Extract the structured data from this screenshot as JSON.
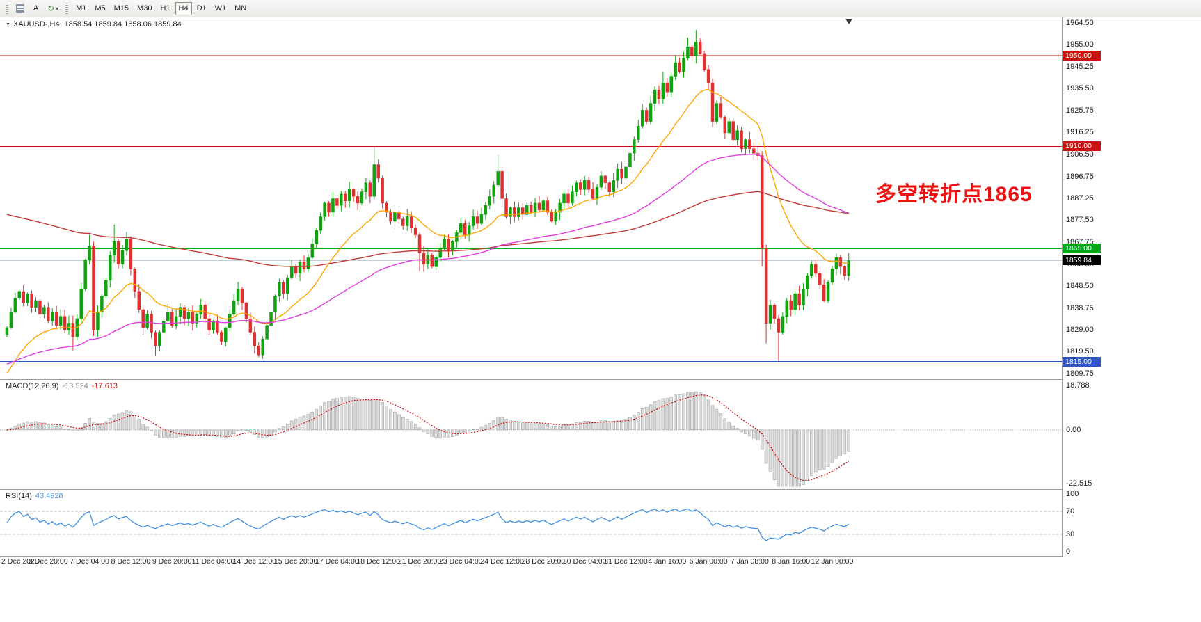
{
  "toolbar": {
    "text_tool_label": "A",
    "icons": {
      "cycle": "↻",
      "dropdown": "▾",
      "symbol_dropdown": "▼"
    },
    "timeframes": [
      {
        "label": "M1"
      },
      {
        "label": "M5"
      },
      {
        "label": "M15"
      },
      {
        "label": "M30"
      },
      {
        "label": "H1"
      },
      {
        "label": "H4",
        "active": true
      },
      {
        "label": "D1"
      },
      {
        "label": "W1"
      },
      {
        "label": "MN"
      }
    ]
  },
  "chart_header": {
    "symbol": "XAUUSD-,H4",
    "ohlc": "1858.54 1859.84 1858.06 1859.84"
  },
  "annotation": {
    "text": "多空转折点1865",
    "color": "#EE1111"
  },
  "price_scale": {
    "ticks": [
      "1964.50",
      "1955.00",
      "1945.25",
      "1935.50",
      "1925.75",
      "1916.25",
      "1906.50",
      "1896.75",
      "1887.25",
      "1877.50",
      "1867.75",
      "1858.00",
      "1848.50",
      "1838.75",
      "1829.00",
      "1819.50",
      "1809.75"
    ]
  },
  "chart_data": {
    "type": "candlestick",
    "symbol": "XAUUSD-",
    "timeframe": "H4",
    "ohlc_display": {
      "open": "1858.54",
      "high": "1859.84",
      "low": "1858.06",
      "close": "1859.84"
    },
    "y_axis": {
      "min": 1809.75,
      "max": 1964.5
    },
    "colors": {
      "up": "#0FA30F",
      "down": "#E03030",
      "bg": "#FFFFFF"
    },
    "open_first": 1827,
    "closes": [
      1830,
      1837,
      1843,
      1846,
      1841,
      1845,
      1839,
      1842,
      1836,
      1839,
      1833,
      1837,
      1831,
      1835,
      1829,
      1832,
      1826,
      1834,
      1847,
      1860,
      1866,
      1829,
      1837,
      1844,
      1851,
      1862,
      1868,
      1858,
      1864,
      1869,
      1856,
      1846,
      1838,
      1830,
      1836,
      1828,
      1822,
      1828,
      1833,
      1837,
      1831,
      1835,
      1839,
      1834,
      1837,
      1832,
      1836,
      1840,
      1834,
      1829,
      1833,
      1828,
      1824,
      1830,
      1836,
      1842,
      1847,
      1841,
      1834,
      1828,
      1822,
      1818,
      1825,
      1831,
      1837,
      1844,
      1850,
      1845,
      1852,
      1857,
      1854,
      1859,
      1856,
      1861,
      1867,
      1873,
      1879,
      1885,
      1881,
      1887,
      1884,
      1889,
      1886,
      1891,
      1888,
      1885,
      1890,
      1894,
      1888,
      1902,
      1896,
      1885,
      1881,
      1877,
      1881,
      1878,
      1875,
      1879,
      1874,
      1871,
      1863,
      1858,
      1862,
      1857,
      1861,
      1865,
      1869,
      1864,
      1868,
      1872,
      1876,
      1871,
      1875,
      1879,
      1876,
      1880,
      1884,
      1888,
      1893,
      1899,
      1887,
      1879,
      1883,
      1879,
      1883,
      1880,
      1884,
      1881,
      1885,
      1882,
      1886,
      1881,
      1877,
      1881,
      1885,
      1889,
      1885,
      1890,
      1894,
      1891,
      1895,
      1891,
      1887,
      1892,
      1897,
      1894,
      1890,
      1895,
      1900,
      1896,
      1901,
      1907,
      1913,
      1919,
      1926,
      1921,
      1929,
      1935,
      1931,
      1938,
      1934,
      1941,
      1947,
      1943,
      1949,
      1954,
      1950,
      1956,
      1951,
      1944,
      1938,
      1921,
      1929,
      1923,
      1916,
      1921,
      1913,
      1917,
      1909,
      1913,
      1909,
      1907,
      1906,
      1865,
      1832,
      1840,
      1834,
      1828,
      1835,
      1842,
      1838,
      1845,
      1840,
      1847,
      1853,
      1858,
      1854,
      1849,
      1842,
      1850,
      1856,
      1861,
      1857,
      1853,
      1859.84
    ],
    "high_overrides": {
      "20": 1871,
      "26": 1875.5,
      "89": 1909.5,
      "119": 1906,
      "159": 1943,
      "165": 1958,
      "167": 1961.5
    },
    "low_overrides": {
      "16": 1820,
      "36": 1817.5,
      "61": 1817,
      "100": 1855,
      "183": 1857,
      "184": 1823,
      "187": 1815.3
    },
    "h_lines": [
      {
        "price": 1950.0,
        "label": "1950.00",
        "color": "#CC1111",
        "label_bg": "#CC1111",
        "width": 1
      },
      {
        "price": 1910.0,
        "label": "1910.00",
        "color": "#CC1111",
        "label_bg": "#CC1111",
        "width": 1
      },
      {
        "price": 1865.0,
        "label": "1865.00",
        "color": "#00B21B",
        "label_bg": "#00A818",
        "width": 2
      },
      {
        "price": 1815.0,
        "label": "1815.00",
        "color": "#2F55C9",
        "label_bg": "#2F55C9",
        "width": 2
      }
    ],
    "bid": {
      "price": 1859.84,
      "label": "1859.84",
      "line_color": "#8FA0B0",
      "label_bg": "#000000"
    },
    "mas": [
      {
        "name": "ma-fast",
        "period": 20,
        "seed": 1810,
        "color": "#FFA500"
      },
      {
        "name": "ma-mid",
        "period": 75,
        "seed": 1814,
        "color": "#E03FE0"
      },
      {
        "name": "ma-slow",
        "period": 170,
        "seed": 1880,
        "color": "#C23B3B"
      }
    ],
    "indicators": [
      {
        "id": "macd",
        "label": "MACD(12,26,9)",
        "value_main": "-13.524",
        "value_signal": "-17.613",
        "fast": 12,
        "slow": 26,
        "signal": 9,
        "scale_max": 18.788,
        "scale_min": -22.515,
        "axis_labels": [
          "18.788",
          "0.00",
          "-22.515"
        ],
        "bar_fill": "#DCDCDC",
        "bar_stroke": "#A3A3A3",
        "signal_color": "#D40000"
      },
      {
        "id": "rsi",
        "label": "RSI(14)",
        "value": "43.4928",
        "period": 14,
        "levels": [
          70,
          30
        ],
        "axis_labels": [
          "100",
          "70",
          "30",
          "0"
        ],
        "line_color": "#3E8FE0",
        "level_color": "#C4C4C4"
      }
    ],
    "x_labels": [
      {
        "i": 0,
        "t": "2 Dec 2020"
      },
      {
        "i": 10,
        "t": "3 Dec 20:00"
      },
      {
        "i": 20,
        "t": "7 Dec 04:00"
      },
      {
        "i": 30,
        "t": "8 Dec 12:00"
      },
      {
        "i": 40,
        "t": "9 Dec 20:00"
      },
      {
        "i": 50,
        "t": "11 Dec 04:00"
      },
      {
        "i": 60,
        "t": "14 Dec 12:00"
      },
      {
        "i": 70,
        "t": "15 Dec 20:00"
      },
      {
        "i": 80,
        "t": "17 Dec 04:00"
      },
      {
        "i": 90,
        "t": "18 Dec 12:00"
      },
      {
        "i": 100,
        "t": "21 Dec 20:00"
      },
      {
        "i": 110,
        "t": "23 Dec 04:00"
      },
      {
        "i": 120,
        "t": "24 Dec 12:00"
      },
      {
        "i": 130,
        "t": "28 Dec 20:00"
      },
      {
        "i": 140,
        "t": "30 Dec 04:00"
      },
      {
        "i": 150,
        "t": "31 Dec 12:00"
      },
      {
        "i": 160,
        "t": "4 Jan 16:00"
      },
      {
        "i": 170,
        "t": "6 Jan 00:00"
      },
      {
        "i": 180,
        "t": "7 Jan 08:00"
      },
      {
        "i": 190,
        "t": "8 Jan 16:00"
      },
      {
        "i": 200,
        "t": "12 Jan 00:00"
      }
    ]
  }
}
